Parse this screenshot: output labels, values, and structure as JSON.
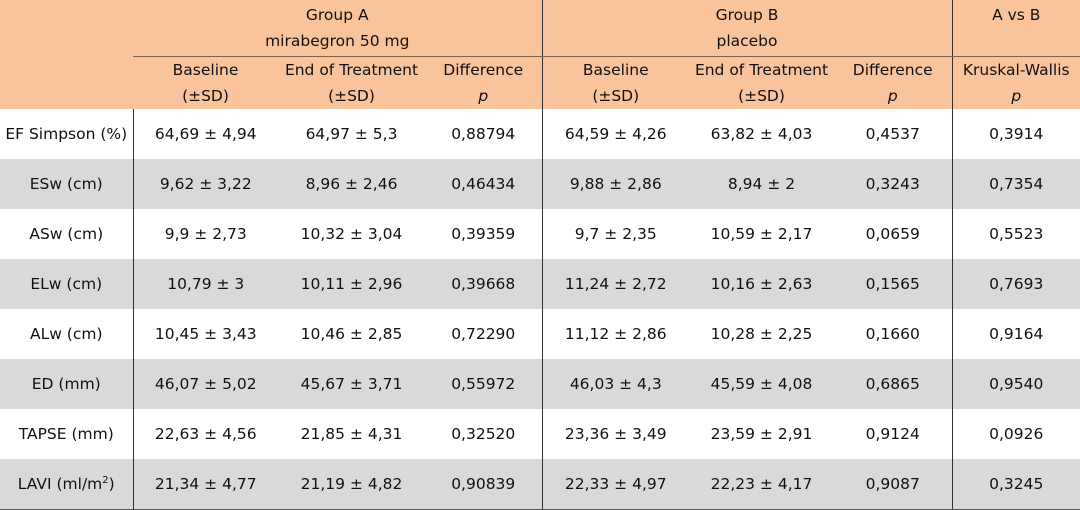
{
  "header": {
    "group_a": {
      "line1": "Group A",
      "line2": "mirabegron 50 mg"
    },
    "group_b": {
      "line1": "Group B",
      "line2": "placebo"
    },
    "compare": {
      "line1": "A vs B"
    },
    "subcols": [
      {
        "l1": "Baseline",
        "l2": "(±SD)",
        "italic": false
      },
      {
        "l1": "End of Treatment",
        "l2": "(±SD)",
        "italic": false
      },
      {
        "l1": "Difference",
        "l2": "p",
        "italic": true
      },
      {
        "l1": "Baseline",
        "l2": "(±SD)",
        "italic": false
      },
      {
        "l1": "End of Treatment",
        "l2": "(±SD)",
        "italic": false
      },
      {
        "l1": "Difference",
        "l2": "p",
        "italic": true
      },
      {
        "l1": "Kruskal-Wallis",
        "l2": "p",
        "italic": true
      }
    ]
  },
  "rows": [
    {
      "label": "EF Simpson (%)",
      "label_sup": "",
      "label_tail": "",
      "cells": [
        "64,69 ± 4,94",
        "64,97 ± 5,3",
        "0,88794",
        "64,59 ± 4,26",
        "63,82 ± 4,03",
        "0,4537",
        "0,3914"
      ]
    },
    {
      "label": "ESw (cm)",
      "label_sup": "",
      "label_tail": "",
      "cells": [
        "9,62 ± 3,22",
        "8,96 ± 2,46",
        "0,46434",
        "9,88 ± 2,86",
        "8,94 ± 2",
        "0,3243",
        "0,7354"
      ]
    },
    {
      "label": "ASw (cm)",
      "label_sup": "",
      "label_tail": "",
      "cells": [
        "9,9 ± 2,73",
        "10,32 ± 3,04",
        "0,39359",
        "9,7 ± 2,35",
        "10,59 ± 2,17",
        "0,0659",
        "0,5523"
      ]
    },
    {
      "label": "ELw (cm)",
      "label_sup": "",
      "label_tail": "",
      "cells": [
        "10,79 ± 3",
        "10,11 ± 2,96",
        "0,39668",
        "11,24 ± 2,72",
        "10,16 ± 2,63",
        "0,1565",
        "0,7693"
      ]
    },
    {
      "label": "ALw (cm)",
      "label_sup": "",
      "label_tail": "",
      "cells": [
        "10,45 ± 3,43",
        "10,46 ± 2,85",
        "0,72290",
        "11,12 ± 2,86",
        "10,28 ± 2,25",
        "0,1660",
        "0,9164"
      ]
    },
    {
      "label": "ED (mm)",
      "label_sup": "",
      "label_tail": "",
      "cells": [
        "46,07 ± 5,02",
        "45,67 ± 3,71",
        "0,55972",
        "46,03 ± 4,3",
        "45,59 ± 4,08",
        "0,6865",
        "0,9540"
      ]
    },
    {
      "label": "TAPSE (mm)",
      "label_sup": "",
      "label_tail": "",
      "cells": [
        "22,63 ± 4,56",
        "21,85 ± 4,31",
        "0,32520",
        "23,36 ± 3,49",
        "23,59 ± 2,91",
        "0,9124",
        "0,0926"
      ]
    },
    {
      "label": "LAVI (ml/m",
      "label_sup": "2",
      "label_tail": ")",
      "cells": [
        "21,34 ± 4,77",
        "21,19 ± 4,82",
        "0,90839",
        "22,33 ± 4,97",
        "22,23 ± 4,17",
        "0,9087",
        "0,3245"
      ]
    }
  ]
}
